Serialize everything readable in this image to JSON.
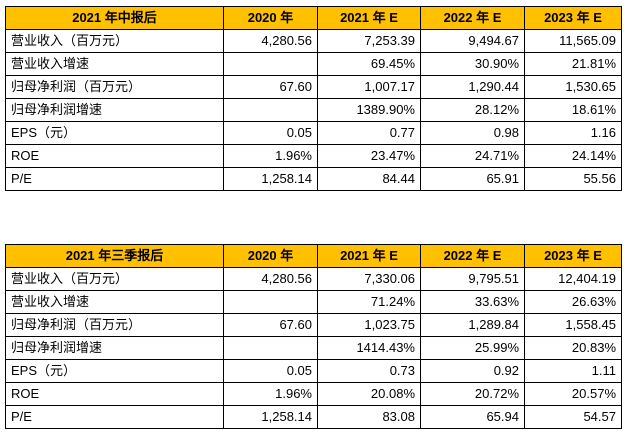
{
  "tables": [
    {
      "title": "2021 年中报后",
      "columns": [
        "2020 年",
        "2021 年 E",
        "2022 年 E",
        "2023 年 E"
      ],
      "rows": [
        {
          "label": "营业收入（百万元）",
          "values": [
            "4,280.56",
            "7,253.39",
            "9,494.67",
            "11,565.09"
          ]
        },
        {
          "label": "营业收入增速",
          "values": [
            "",
            "69.45%",
            "30.90%",
            "21.81%"
          ]
        },
        {
          "label": "归母净利润（百万元）",
          "values": [
            "67.60",
            "1,007.17",
            "1,290.44",
            "1,530.65"
          ]
        },
        {
          "label": "归母净利润增速",
          "values": [
            "",
            "1389.90%",
            "28.12%",
            "18.61%"
          ]
        },
        {
          "label": "EPS（元）",
          "values": [
            "0.05",
            "0.77",
            "0.98",
            "1.16"
          ]
        },
        {
          "label": "ROE",
          "values": [
            "1.96%",
            "23.47%",
            "24.71%",
            "24.14%"
          ]
        },
        {
          "label": "P/E",
          "values": [
            "1,258.14",
            "84.44",
            "65.91",
            "55.56"
          ]
        }
      ]
    },
    {
      "title": "2021 年三季报后",
      "columns": [
        "2020 年",
        "2021 年 E",
        "2022 年 E",
        "2023 年 E"
      ],
      "rows": [
        {
          "label": "营业收入（百万元）",
          "values": [
            "4,280.56",
            "7,330.06",
            "9,795.51",
            "12,404.19"
          ]
        },
        {
          "label": "营业收入增速",
          "values": [
            "",
            "71.24%",
            "33.63%",
            "26.63%"
          ]
        },
        {
          "label": "归母净利润（百万元）",
          "values": [
            "67.60",
            "1,023.75",
            "1,289.84",
            "1,558.45"
          ]
        },
        {
          "label": "归母净利润增速",
          "values": [
            "",
            "1414.43%",
            "25.99%",
            "20.83%"
          ]
        },
        {
          "label": "EPS（元）",
          "values": [
            "0.05",
            "0.73",
            "0.92",
            "1.11"
          ]
        },
        {
          "label": "ROE",
          "values": [
            "1.96%",
            "20.08%",
            "20.72%",
            "20.57%"
          ]
        },
        {
          "label": "P/E",
          "values": [
            "1,258.14",
            "83.08",
            "65.94",
            "54.57"
          ]
        }
      ]
    }
  ],
  "colors": {
    "header_background": "#FFC000",
    "border": "#000000"
  }
}
